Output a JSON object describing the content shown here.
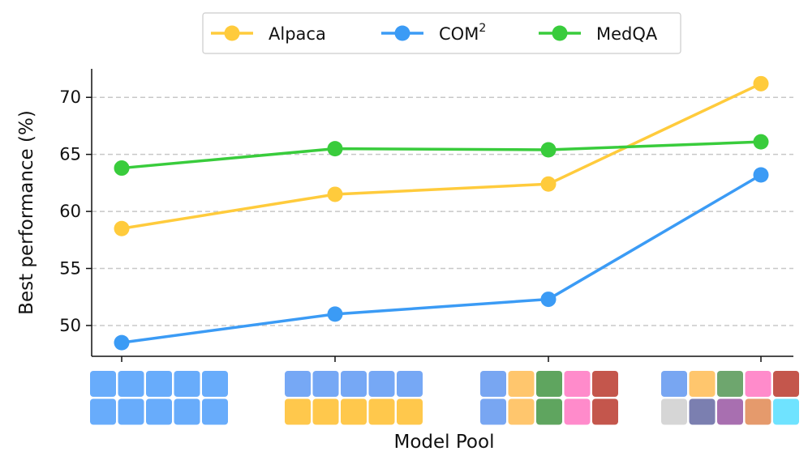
{
  "chart_data": {
    "type": "line",
    "xlabel": "Model Pool",
    "ylabel": "Best performance (%)",
    "ylim": [
      47.3,
      72.5
    ],
    "yticks": [
      50,
      55,
      60,
      65,
      70
    ],
    "grid": "horizontal-dashed",
    "legend_position": "top-center",
    "x": [
      1,
      2,
      3,
      4
    ],
    "series": [
      {
        "name": "Alpaca",
        "values": [
          58.5,
          61.5,
          62.4,
          71.2
        ],
        "color": "#FFCB3C"
      },
      {
        "name": "COM",
        "name_sup": "2",
        "values": [
          48.5,
          51.0,
          52.3,
          63.2
        ],
        "color": "#3B9BF5"
      },
      {
        "name": "MedQA",
        "values": [
          63.8,
          65.5,
          65.4,
          66.1
        ],
        "color": "#39CC3C"
      }
    ],
    "model_pools": [
      [
        [
          "#68ACFB",
          "#68ACFB",
          "#68ACFB",
          "#68ACFB",
          "#68ACFB"
        ],
        [
          "#68ACFB",
          "#68ACFB",
          "#68ACFB",
          "#68ACFB",
          "#68ACFB"
        ]
      ],
      [
        [
          "#76A8F5",
          "#76A8F5",
          "#76A8F5",
          "#76A8F5",
          "#76A8F5"
        ],
        [
          "#FFC84C",
          "#FFC84C",
          "#FFC84C",
          "#FFC84C",
          "#FFC84C"
        ]
      ],
      [
        [
          "#78A6F2",
          "#FFC66D",
          "#5FA55F",
          "#FF8BCB",
          "#C4564C"
        ],
        [
          "#78A6F2",
          "#FFC66D",
          "#5FA55F",
          "#FF8BCB",
          "#C4564C"
        ]
      ],
      [
        [
          "#78A6F2",
          "#FFC66D",
          "#6EA66E",
          "#FF8BCB",
          "#C4564C"
        ],
        [
          "#D6D6D6",
          "#7B7FB0",
          "#A86FB0",
          "#E59A6C",
          "#6FE3FF"
        ]
      ]
    ]
  }
}
